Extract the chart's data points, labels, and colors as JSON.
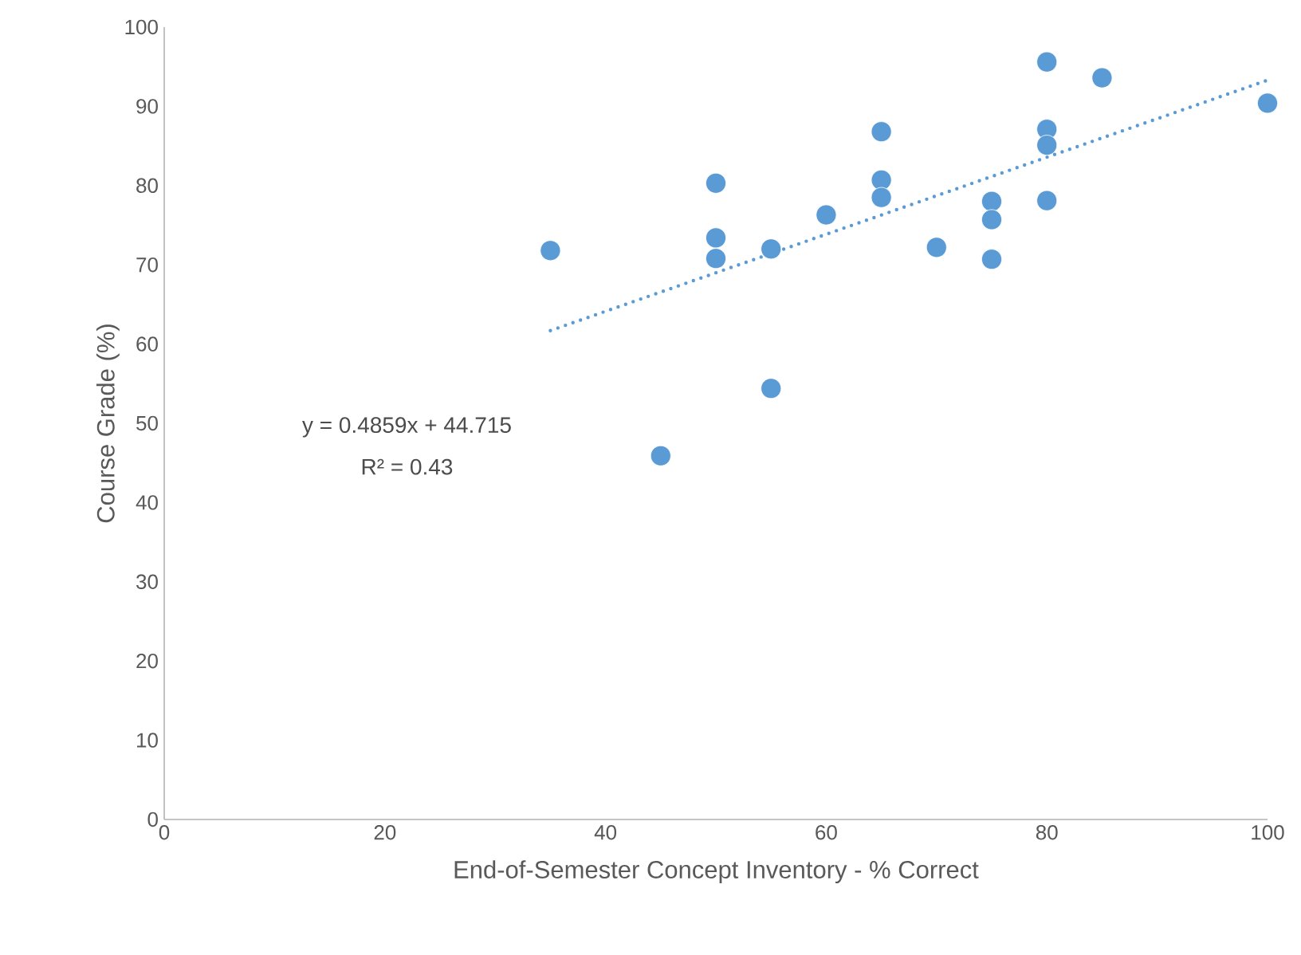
{
  "chart_data": {
    "type": "scatter",
    "xlabel": "End-of-Semester Concept Inventory - % Correct",
    "ylabel": "Course Grade (%)",
    "annotations": [
      "y = 0.4859x + 44.715",
      "R² = 0.43"
    ],
    "xlim": [
      0,
      100
    ],
    "xticks": [
      0,
      20,
      40,
      60,
      80,
      100
    ],
    "ylim": [
      0,
      100
    ],
    "yticks": [
      0,
      10,
      20,
      30,
      40,
      50,
      60,
      70,
      80,
      90,
      100
    ],
    "grid": false,
    "legend": false,
    "series": [
      {
        "color": "#5b9bd5",
        "marker": "circle",
        "x": [
          35,
          45,
          50,
          50,
          50,
          55,
          55,
          60,
          65,
          65,
          65,
          70,
          75,
          75,
          75,
          80,
          80,
          80,
          80,
          85,
          100
        ],
        "values": [
          71.8,
          45.9,
          80.3,
          73.4,
          70.8,
          72.0,
          54.4,
          76.3,
          86.8,
          80.7,
          78.5,
          72.2,
          78.0,
          75.7,
          70.7,
          95.6,
          87.1,
          85.1,
          78.1,
          93.6,
          90.4
        ]
      },
      {
        "type": "line",
        "color": "#5b9bd5",
        "line_style": "dotted",
        "marker": "none",
        "x": [
          35,
          100
        ],
        "values": [
          61.7,
          93.3
        ]
      }
    ]
  }
}
